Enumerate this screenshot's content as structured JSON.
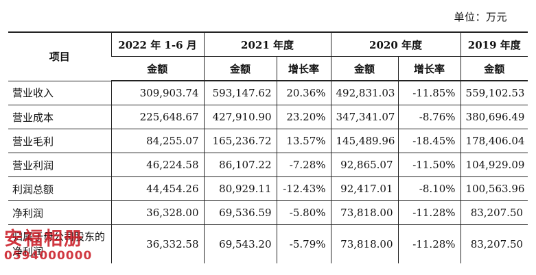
{
  "unit_label": "单位：万元",
  "header": {
    "item_label": "项目",
    "periods": [
      {
        "label": "2022 年 1-6 月"
      },
      {
        "label": "2021 年度"
      },
      {
        "label": "2020 年度"
      },
      {
        "label": "2019 年度"
      }
    ],
    "sub": [
      "金额",
      "金额",
      "增长率",
      "金额",
      "增长率",
      "金额"
    ]
  },
  "rows": [
    {
      "label": "营业收入",
      "v2022h1": "309,903.74",
      "v2021": "593,147.62",
      "g2021": "20.36%",
      "v2020": "492,831.03",
      "g2020": "-11.85%",
      "v2019": "559,102.53"
    },
    {
      "label": "营业成本",
      "v2022h1": "225,648.67",
      "v2021": "427,910.90",
      "g2021": "23.20%",
      "v2020": "347,341.07",
      "g2020": "-8.76%",
      "v2019": "380,696.49"
    },
    {
      "label": "营业毛利",
      "v2022h1": "84,255.07",
      "v2021": "165,236.72",
      "g2021": "13.57%",
      "v2020": "145,489.96",
      "g2020": "-18.45%",
      "v2019": "178,406.04"
    },
    {
      "label": "营业利润",
      "v2022h1": "46,224.58",
      "v2021": "86,107.22",
      "g2021": "-7.28%",
      "v2020": "92,865.07",
      "g2020": "-11.50%",
      "v2019": "104,929.09"
    },
    {
      "label": "利润总额",
      "v2022h1": "44,454.26",
      "v2021": "80,929.11",
      "g2021": "-12.43%",
      "v2020": "92,417.01",
      "g2020": "-8.10%",
      "v2019": "100,563.96"
    },
    {
      "label": "净利润",
      "v2022h1": "36,328.00",
      "v2021": "69,536.59",
      "g2021": "-5.80%",
      "v2020": "73,818.00",
      "g2020": "-11.28%",
      "v2019": "83,207.50"
    },
    {
      "label": "归属于母公司股东的净利润",
      "v2022h1": "36,332.58",
      "v2021": "69,543.20",
      "g2021": "-5.79%",
      "v2020": "73,818.00",
      "g2020": "-11.28%",
      "v2019": "83,207.50"
    }
  ],
  "watermark": {
    "name": "安福相册",
    "number": "0594000000"
  },
  "colors": {
    "border": "#222222",
    "text": "#111111",
    "watermark": "#c8141e"
  }
}
